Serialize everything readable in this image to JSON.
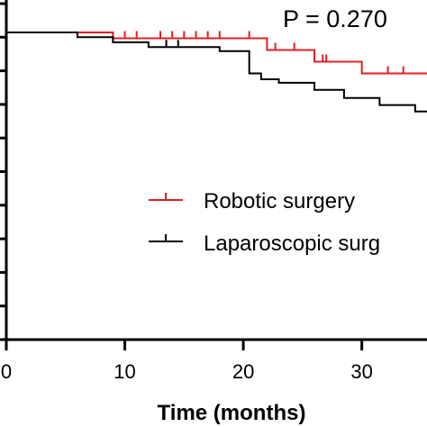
{
  "chart_data": {
    "type": "line",
    "title": "",
    "annotation": "P = 0.270",
    "xlabel": "Time (months)",
    "ylabel": "",
    "xlim": [
      0,
      35.5
    ],
    "ylim": [
      0,
      100
    ],
    "x_ticks": [
      0,
      10,
      20,
      30
    ],
    "x_tick_labels": [
      "0",
      "10",
      "20",
      "30"
    ],
    "y_tick_count": 11,
    "legend_position": "right",
    "series": [
      {
        "name": "Robotic surgery",
        "color": "#e02020",
        "steps": [
          [
            0,
            100
          ],
          [
            9,
            99
          ],
          [
            22,
            97
          ],
          [
            26,
            95
          ],
          [
            30,
            93
          ],
          [
            35.5,
            93
          ]
        ],
        "censored": [
          [
            10,
            99
          ],
          [
            11,
            99
          ],
          [
            13,
            99
          ],
          [
            14,
            99
          ],
          [
            15,
            99
          ],
          [
            16,
            99
          ],
          [
            17,
            99
          ],
          [
            18,
            99
          ],
          [
            20.5,
            99
          ],
          [
            22.7,
            97
          ],
          [
            24.3,
            97
          ],
          [
            26.7,
            95
          ],
          [
            27,
            95
          ],
          [
            32.2,
            93
          ],
          [
            33.5,
            93
          ]
        ]
      },
      {
        "name": "Laparoscopic surgery",
        "color": "#000000",
        "steps": [
          [
            0,
            100
          ],
          [
            6,
            99.2
          ],
          [
            9,
            98.3
          ],
          [
            12,
            97.5
          ],
          [
            18,
            96.8
          ],
          [
            20.5,
            93
          ],
          [
            21.5,
            92
          ],
          [
            23,
            91.4
          ],
          [
            26,
            90.2
          ],
          [
            28.5,
            88.8
          ],
          [
            31.5,
            87.6
          ],
          [
            34.5,
            86.5
          ],
          [
            35.5,
            86.5
          ]
        ],
        "censored": [
          [
            13.5,
            97.5
          ],
          [
            14.5,
            97.5
          ]
        ]
      }
    ],
    "legend_label_overflow": "Laparoscopic surg"
  }
}
